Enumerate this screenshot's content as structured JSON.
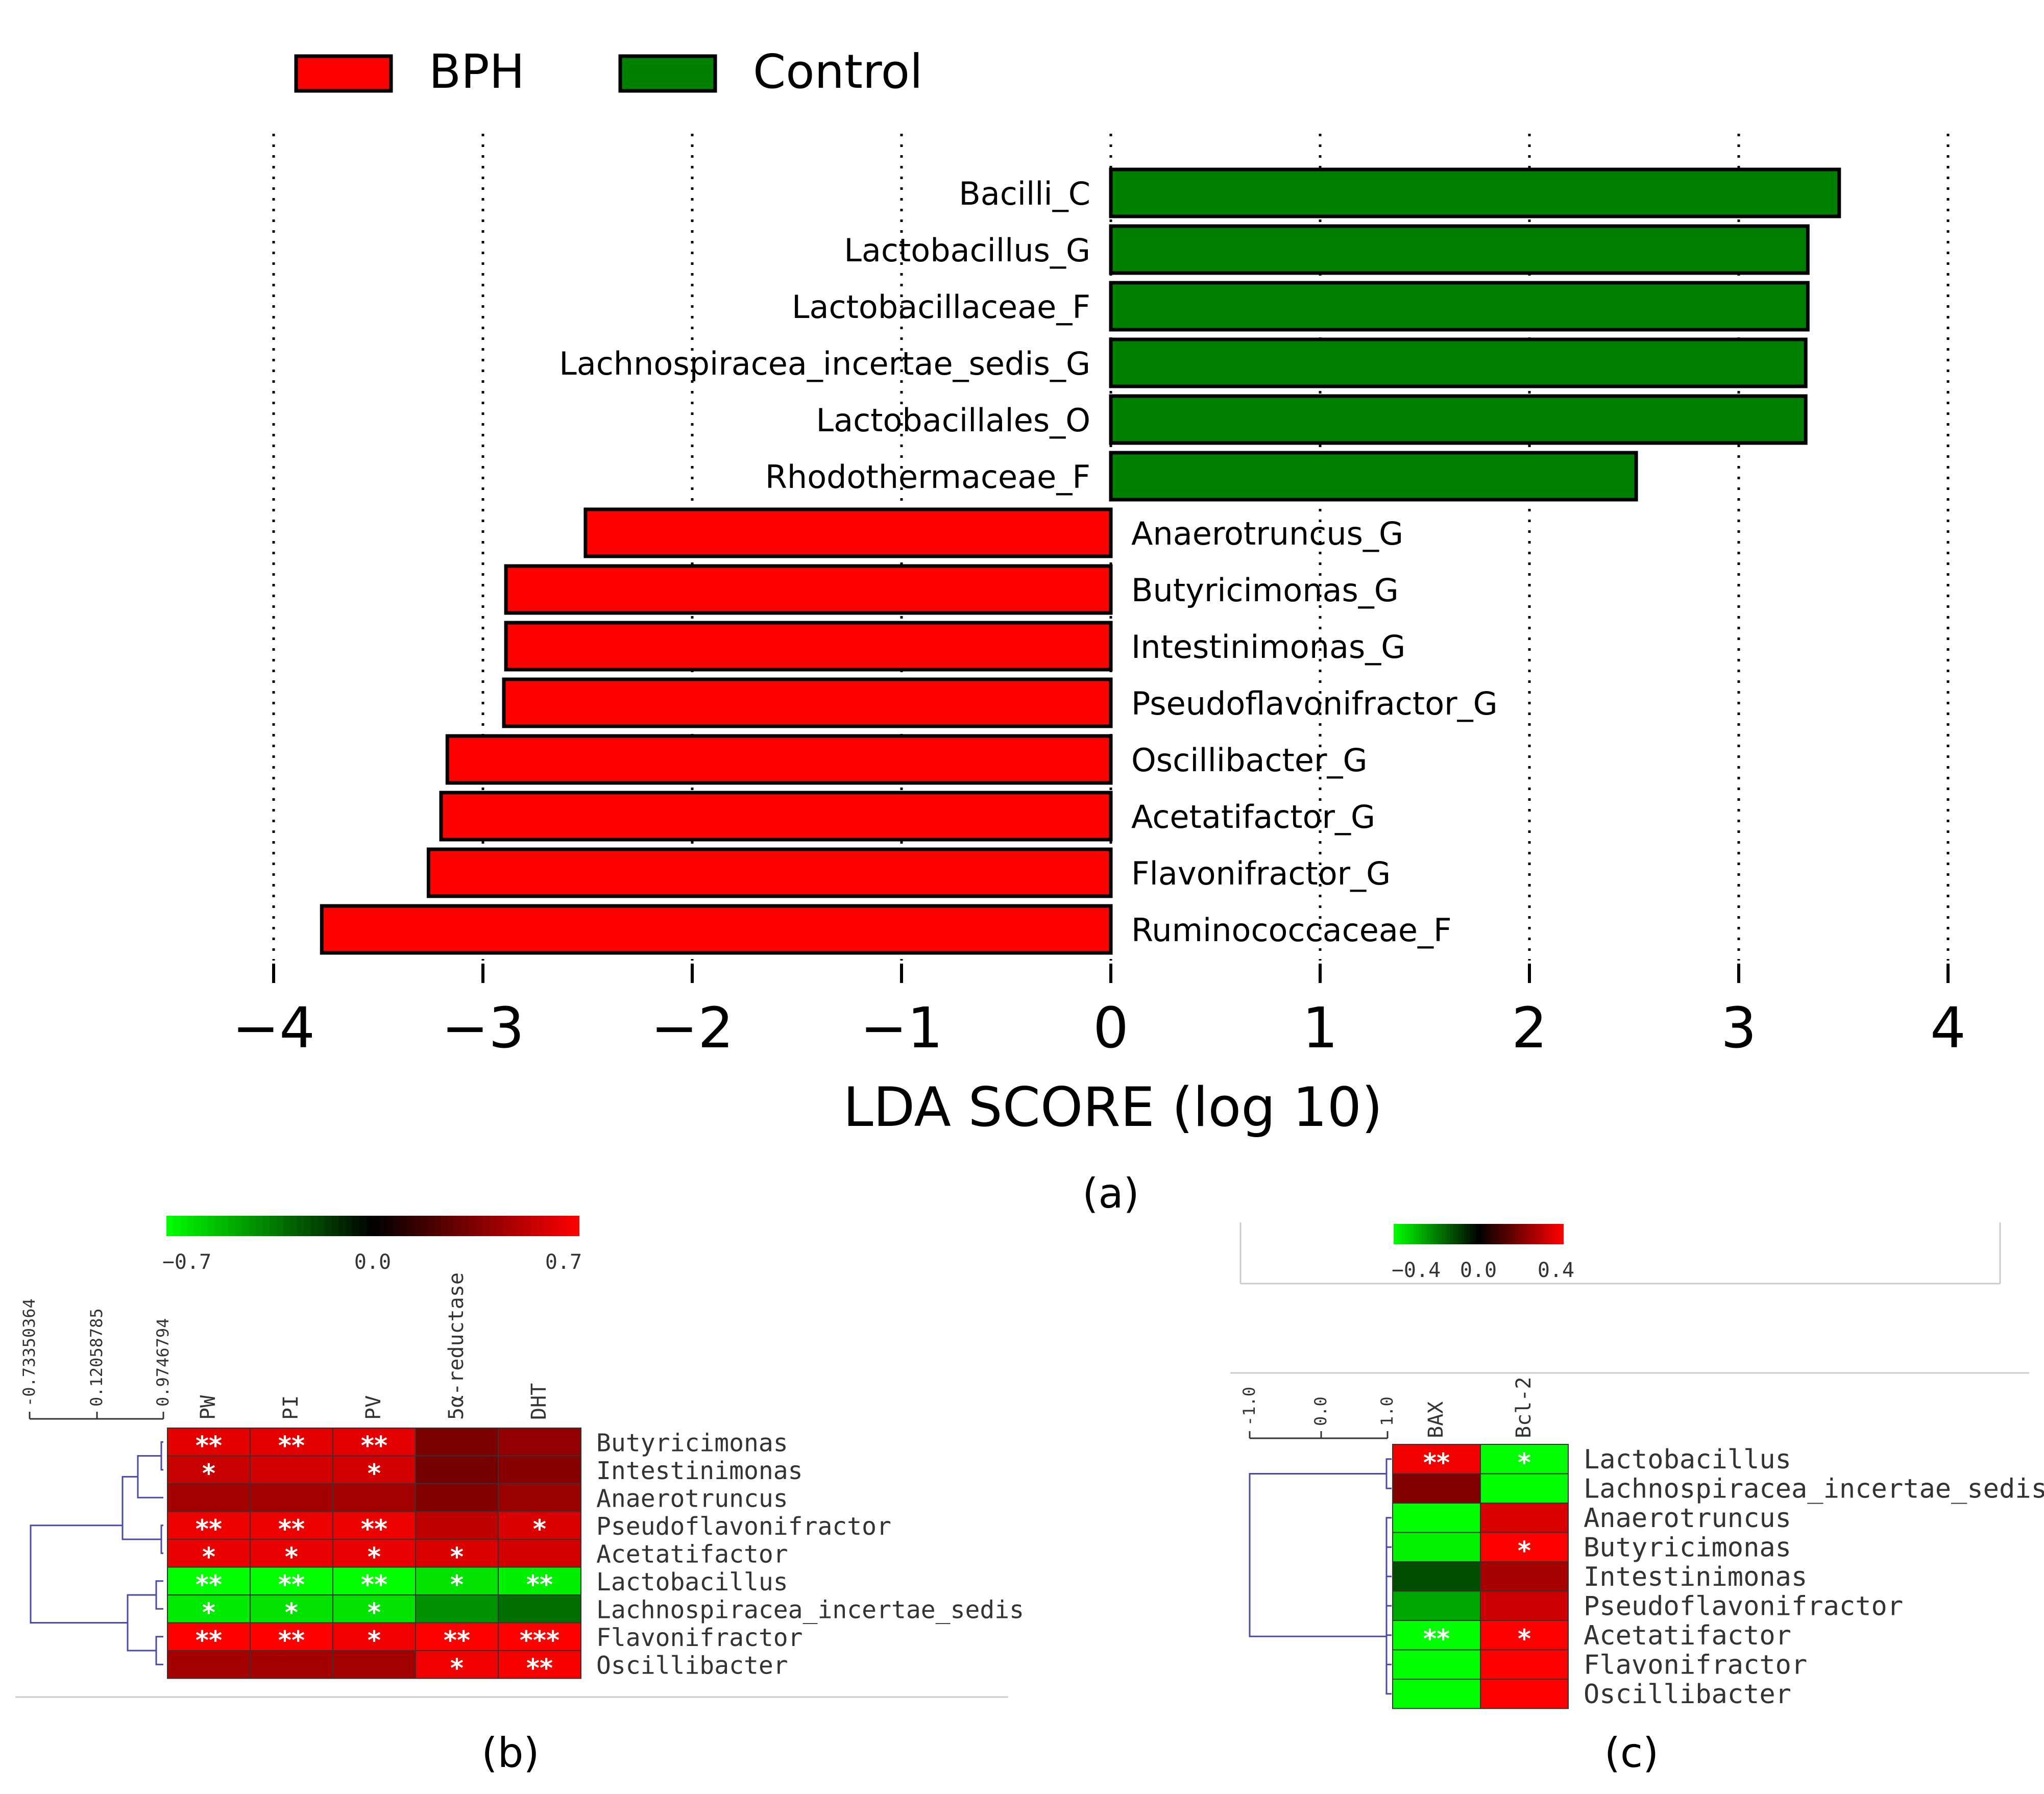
{
  "chart_data": [
    {
      "panel": "a",
      "type": "bar",
      "orientation": "horizontal",
      "title": "",
      "xlabel": "LDA SCORE (log 10)",
      "ylabel": "",
      "xlim": [
        -4,
        4
      ],
      "xticks": [
        -4,
        -3,
        -2,
        -1,
        0,
        1,
        2,
        3,
        4
      ],
      "xtick_labels": [
        "−4",
        "−3",
        "−2",
        "−1",
        "0",
        "1",
        "2",
        "3",
        "4"
      ],
      "grid": "vertical dotted",
      "legend": [
        {
          "name": "BPH",
          "color": "#ff0000"
        },
        {
          "name": "Control",
          "color": "#008000"
        }
      ],
      "legend_position": "top-left",
      "categories": [
        "Bacilli_C",
        "Lactobacillus_G",
        "Lactobacillaceae_F",
        "Lachnospiracea_incertae_sedis_G",
        "Lactobacillales_O",
        "Rhodothermaceae_F",
        "Anaerotruncus_G",
        "Butyricimonas_G",
        "Intestinimonas_G",
        "Pseudoflavonifractor_G",
        "Oscillibacter_G",
        "Acetatifactor_G",
        "Flavonifractor_G",
        "Ruminococcaceae_F"
      ],
      "values": [
        3.48,
        3.33,
        3.33,
        3.32,
        3.32,
        2.51,
        -2.51,
        -2.89,
        -2.89,
        -2.9,
        -3.17,
        -3.2,
        -3.26,
        -3.77
      ],
      "groups": [
        "Control",
        "Control",
        "Control",
        "Control",
        "Control",
        "Control",
        "BPH",
        "BPH",
        "BPH",
        "BPH",
        "BPH",
        "BPH",
        "BPH",
        "BPH"
      ],
      "caption": "a"
    },
    {
      "panel": "b",
      "type": "heatmap",
      "colorbar": {
        "min": -0.7,
        "max": 0.7,
        "labels": [
          "−0.7",
          "0.0",
          "0.7"
        ],
        "low_color": "#00ff00",
        "mid_color": "#000000",
        "high_color": "#ff0000"
      },
      "dendrogram_scale_labels": [
        "-0.73350364",
        "0.12058785",
        "0.9746794"
      ],
      "columns": [
        "PW",
        "PI",
        "PV",
        "5α-reductase",
        "DHT"
      ],
      "rows": [
        "Butyricimonas",
        "Intestinimonas",
        "Anaerotruncus",
        "Pseudoflavonifractor",
        "Acetatifactor",
        "Lactobacillus",
        "Lachnospiracea_incertae_sedis",
        "Flavonifractor",
        "Oscillibacter"
      ],
      "values": [
        [
          0.62,
          0.62,
          0.62,
          0.34,
          0.4
        ],
        [
          0.55,
          0.58,
          0.58,
          0.32,
          0.38
        ],
        [
          0.45,
          0.45,
          0.45,
          0.36,
          0.42
        ],
        [
          0.65,
          0.65,
          0.65,
          0.52,
          0.6
        ],
        [
          0.64,
          0.64,
          0.64,
          0.6,
          0.58
        ],
        [
          -0.72,
          -0.72,
          -0.72,
          -0.62,
          -0.66
        ],
        [
          -0.64,
          -0.62,
          -0.62,
          -0.4,
          -0.3
        ],
        [
          0.7,
          0.7,
          0.66,
          0.7,
          0.7
        ],
        [
          0.45,
          0.45,
          0.45,
          0.66,
          0.68
        ]
      ],
      "significance": [
        [
          "**",
          "**",
          "**",
          "",
          ""
        ],
        [
          "*",
          "",
          "*",
          "",
          ""
        ],
        [
          "",
          "",
          "",
          "",
          ""
        ],
        [
          "**",
          "**",
          "**",
          "",
          "*"
        ],
        [
          "*",
          "*",
          "*",
          "*",
          ""
        ],
        [
          "**",
          "**",
          "**",
          "*",
          "**"
        ],
        [
          "*",
          "*",
          "*",
          "",
          ""
        ],
        [
          "**",
          "**",
          "*",
          "**",
          "***"
        ],
        [
          "",
          "",
          "",
          "*",
          "**"
        ]
      ],
      "caption": "b"
    },
    {
      "panel": "c",
      "type": "heatmap",
      "colorbar": {
        "min": -0.4,
        "max": 0.4,
        "labels": [
          "−0.4",
          "0.0",
          "0.4"
        ],
        "low_color": "#00ff00",
        "mid_color": "#000000",
        "high_color": "#ff0000"
      },
      "dendrogram_scale_labels": [
        "-1.0",
        "0.0",
        "1.0"
      ],
      "columns": [
        "BAX",
        "Bcl-2"
      ],
      "rows": [
        "Lactobacillus",
        "Lachnospiracea_incertae_sedis",
        "Anaerotruncus",
        "Butyricimonas",
        "Intestinimonas",
        "Pseudoflavonifractor",
        "Acetatifactor",
        "Flavonifractor",
        "Oscillibacter"
      ],
      "values": [
        [
          0.38,
          -0.4
        ],
        [
          0.2,
          -0.4
        ],
        [
          -0.4,
          0.34
        ],
        [
          -0.38,
          0.4
        ],
        [
          -0.12,
          0.26
        ],
        [
          -0.26,
          0.32
        ],
        [
          -0.4,
          0.4
        ],
        [
          -0.4,
          0.4
        ],
        [
          -0.4,
          0.4
        ]
      ],
      "significance": [
        [
          "**",
          "*"
        ],
        [
          "",
          ""
        ],
        [
          "",
          ""
        ],
        [
          "",
          "*"
        ],
        [
          "",
          ""
        ],
        [
          "",
          ""
        ],
        [
          "**",
          "*"
        ],
        [
          "",
          ""
        ],
        [
          "",
          ""
        ]
      ],
      "caption": "c"
    }
  ]
}
